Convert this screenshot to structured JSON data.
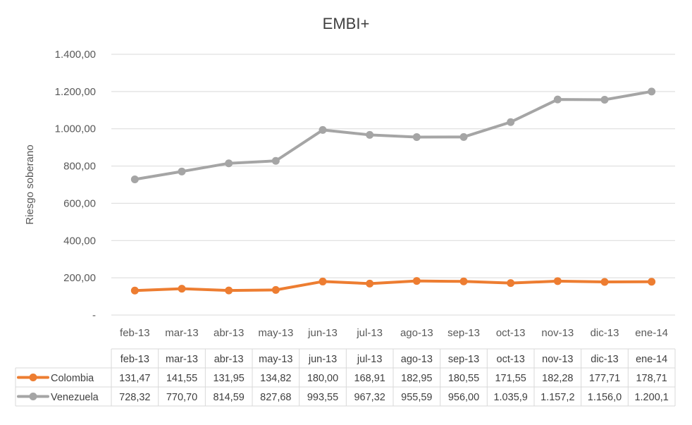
{
  "chart_data": {
    "type": "line",
    "title": "EMBI+",
    "ylabel": "Riesgo soberano",
    "xlabel": "",
    "ylim": [
      0,
      1400
    ],
    "yticks": [
      0,
      200,
      400,
      600,
      800,
      1000,
      1200,
      1400
    ],
    "ytick_labels": [
      "-",
      "200,00",
      "400,00",
      "600,00",
      "800,00",
      "1.000,00",
      "1.200,00",
      "1.400,00"
    ],
    "grid": "horizontal",
    "legend": "data-table",
    "categories": [
      "feb-13",
      "mar-13",
      "abr-13",
      "may-13",
      "jun-13",
      "jul-13",
      "ago-13",
      "sep-13",
      "oct-13",
      "nov-13",
      "dic-13",
      "ene-14"
    ],
    "series": [
      {
        "name": "Colombia",
        "color": "#ed7d31",
        "values": [
          131.47,
          141.55,
          131.95,
          134.82,
          180.0,
          168.91,
          182.95,
          180.55,
          171.55,
          182.28,
          177.71,
          178.71
        ],
        "labels": [
          "131,47",
          "141,55",
          "131,95",
          "134,82",
          "180,00",
          "168,91",
          "182,95",
          "180,55",
          "171,55",
          "182,28",
          "177,71",
          "178,71"
        ]
      },
      {
        "name": "Venezuela",
        "color": "#a5a5a5",
        "values": [
          728.32,
          770.7,
          814.59,
          827.68,
          993.55,
          967.32,
          955.59,
          956.0,
          1035.9,
          1157.2,
          1156.0,
          1200.1
        ],
        "labels": [
          "728,32",
          "770,70",
          "814,59",
          "827,68",
          "993,55",
          "967,32",
          "955,59",
          "956,00",
          "1.035,9",
          "1.157,2",
          "1.156,0",
          "1.200,1"
        ]
      }
    ]
  }
}
